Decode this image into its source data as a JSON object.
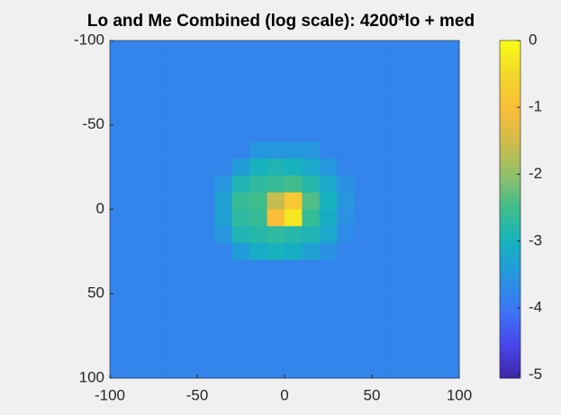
{
  "chart_data": {
    "type": "heatmap",
    "title": "Lo and Me Combined (log scale): 4200*lo + med",
    "colormap": "parula",
    "x": [
      -95,
      -85,
      -75,
      -65,
      -55,
      -45,
      -35,
      -25,
      -15,
      -5,
      5,
      15,
      25,
      35,
      45,
      55,
      65,
      75,
      85,
      95
    ],
    "y": [
      -95,
      -85,
      -75,
      -65,
      -55,
      -45,
      -35,
      -25,
      -15,
      -5,
      5,
      15,
      25,
      35,
      45,
      55,
      65,
      75,
      85,
      95
    ],
    "z": [
      [
        -3.8,
        -3.8,
        -3.8,
        -3.8,
        -3.8,
        -3.8,
        -3.8,
        -3.8,
        -3.8,
        -3.8,
        -3.8,
        -3.8,
        -3.8,
        -3.8,
        -3.8,
        -3.8,
        -3.8,
        -3.8,
        -3.8,
        -3.8
      ],
      [
        -3.8,
        -3.8,
        -3.8,
        -3.8,
        -3.8,
        -3.8,
        -3.8,
        -3.8,
        -3.8,
        -3.8,
        -3.8,
        -3.8,
        -3.8,
        -3.8,
        -3.8,
        -3.8,
        -3.8,
        -3.8,
        -3.8,
        -3.8
      ],
      [
        -3.8,
        -3.8,
        -3.8,
        -3.8,
        -3.8,
        -3.8,
        -3.8,
        -3.8,
        -3.8,
        -3.8,
        -3.8,
        -3.8,
        -3.8,
        -3.8,
        -3.8,
        -3.8,
        -3.8,
        -3.8,
        -3.8,
        -3.8
      ],
      [
        -3.8,
        -3.8,
        -3.8,
        -3.8,
        -3.8,
        -3.8,
        -3.8,
        -3.8,
        -3.8,
        -3.8,
        -3.8,
        -3.8,
        -3.8,
        -3.8,
        -3.8,
        -3.8,
        -3.8,
        -3.8,
        -3.8,
        -3.8
      ],
      [
        -3.8,
        -3.8,
        -3.8,
        -3.8,
        -3.8,
        -3.8,
        -3.8,
        -3.8,
        -3.8,
        -3.8,
        -3.8,
        -3.8,
        -3.8,
        -3.8,
        -3.8,
        -3.8,
        -3.8,
        -3.8,
        -3.8,
        -3.8
      ],
      [
        -3.8,
        -3.8,
        -3.8,
        -3.8,
        -3.8,
        -3.8,
        -3.8,
        -3.8,
        -3.8,
        -3.8,
        -3.8,
        -3.8,
        -3.8,
        -3.8,
        -3.8,
        -3.8,
        -3.8,
        -3.8,
        -3.8,
        -3.8
      ],
      [
        -3.8,
        -3.8,
        -3.8,
        -3.8,
        -3.8,
        -3.8,
        -3.8,
        -3.8,
        -3.5,
        -3.5,
        -3.5,
        -3.5,
        -3.8,
        -3.8,
        -3.8,
        -3.8,
        -3.8,
        -3.8,
        -3.8,
        -3.8
      ],
      [
        -3.8,
        -3.8,
        -3.8,
        -3.8,
        -3.8,
        -3.8,
        -3.8,
        -3.4,
        -3.0,
        -2.9,
        -3.0,
        -3.2,
        -3.5,
        -3.8,
        -3.8,
        -3.8,
        -3.8,
        -3.8,
        -3.8,
        -3.8
      ],
      [
        -3.8,
        -3.8,
        -3.8,
        -3.8,
        -3.8,
        -3.8,
        -3.5,
        -2.9,
        -2.7,
        -2.6,
        -2.5,
        -2.8,
        -3.2,
        -3.6,
        -3.8,
        -3.8,
        -3.8,
        -3.8,
        -3.8,
        -3.8
      ],
      [
        -3.8,
        -3.8,
        -3.8,
        -3.8,
        -3.8,
        -3.8,
        -3.3,
        -2.6,
        -2.5,
        -1.6,
        -0.8,
        -2.4,
        -3.0,
        -3.5,
        -3.8,
        -3.8,
        -3.8,
        -3.8,
        -3.8,
        -3.8
      ],
      [
        -3.8,
        -3.8,
        -3.8,
        -3.8,
        -3.8,
        -3.8,
        -3.3,
        -2.7,
        -2.6,
        -1.0,
        -0.3,
        -2.6,
        -3.1,
        -3.6,
        -3.8,
        -3.8,
        -3.8,
        -3.8,
        -3.8,
        -3.8
      ],
      [
        -3.8,
        -3.8,
        -3.8,
        -3.8,
        -3.8,
        -3.8,
        -3.5,
        -2.9,
        -2.8,
        -2.7,
        -2.8,
        -2.9,
        -3.2,
        -3.7,
        -3.8,
        -3.8,
        -3.8,
        -3.8,
        -3.8,
        -3.8
      ],
      [
        -3.8,
        -3.8,
        -3.8,
        -3.8,
        -3.8,
        -3.8,
        -3.8,
        -3.4,
        -3.1,
        -3.0,
        -3.1,
        -3.3,
        -3.6,
        -3.8,
        -3.8,
        -3.8,
        -3.8,
        -3.8,
        -3.8,
        -3.8
      ],
      [
        -3.8,
        -3.8,
        -3.8,
        -3.8,
        -3.8,
        -3.8,
        -3.8,
        -3.8,
        -3.8,
        -3.8,
        -3.8,
        -3.8,
        -3.8,
        -3.8,
        -3.8,
        -3.8,
        -3.8,
        -3.8,
        -3.8,
        -3.8
      ],
      [
        -3.8,
        -3.8,
        -3.8,
        -3.8,
        -3.8,
        -3.8,
        -3.8,
        -3.8,
        -3.8,
        -3.8,
        -3.8,
        -3.8,
        -3.8,
        -3.8,
        -3.8,
        -3.8,
        -3.8,
        -3.8,
        -3.8,
        -3.8
      ],
      [
        -3.8,
        -3.8,
        -3.8,
        -3.8,
        -3.8,
        -3.8,
        -3.8,
        -3.8,
        -3.8,
        -3.8,
        -3.8,
        -3.8,
        -3.8,
        -3.8,
        -3.8,
        -3.8,
        -3.8,
        -3.8,
        -3.8,
        -3.8
      ],
      [
        -3.8,
        -3.8,
        -3.8,
        -3.8,
        -3.8,
        -3.8,
        -3.8,
        -3.8,
        -3.8,
        -3.8,
        -3.8,
        -3.8,
        -3.8,
        -3.8,
        -3.8,
        -3.8,
        -3.8,
        -3.8,
        -3.8,
        -3.8
      ],
      [
        -3.8,
        -3.8,
        -3.8,
        -3.8,
        -3.8,
        -3.8,
        -3.8,
        -3.8,
        -3.8,
        -3.8,
        -3.8,
        -3.8,
        -3.8,
        -3.8,
        -3.8,
        -3.8,
        -3.8,
        -3.8,
        -3.8,
        -3.8
      ],
      [
        -3.8,
        -3.8,
        -3.8,
        -3.8,
        -3.8,
        -3.8,
        -3.8,
        -3.8,
        -3.8,
        -3.8,
        -3.8,
        -3.8,
        -3.8,
        -3.8,
        -3.8,
        -3.8,
        -3.8,
        -3.8,
        -3.8,
        -3.8
      ],
      [
        -3.8,
        -3.8,
        -3.8,
        -3.8,
        -3.8,
        -3.8,
        -3.8,
        -3.8,
        -3.8,
        -3.8,
        -3.8,
        -3.8,
        -3.8,
        -3.8,
        -3.8,
        -3.8,
        -3.8,
        -3.8,
        -3.8,
        -3.8
      ]
    ],
    "xlim": [
      -100,
      100
    ],
    "xticks": [
      -100,
      -50,
      0,
      50,
      100
    ],
    "ylim": [
      -100,
      100
    ],
    "yticks": [
      -100,
      -50,
      0,
      50,
      100
    ],
    "y_reversed": true,
    "clim": [
      -5.05,
      0
    ],
    "cticks": [
      0,
      -1,
      -2,
      -3,
      -4,
      -5
    ]
  }
}
